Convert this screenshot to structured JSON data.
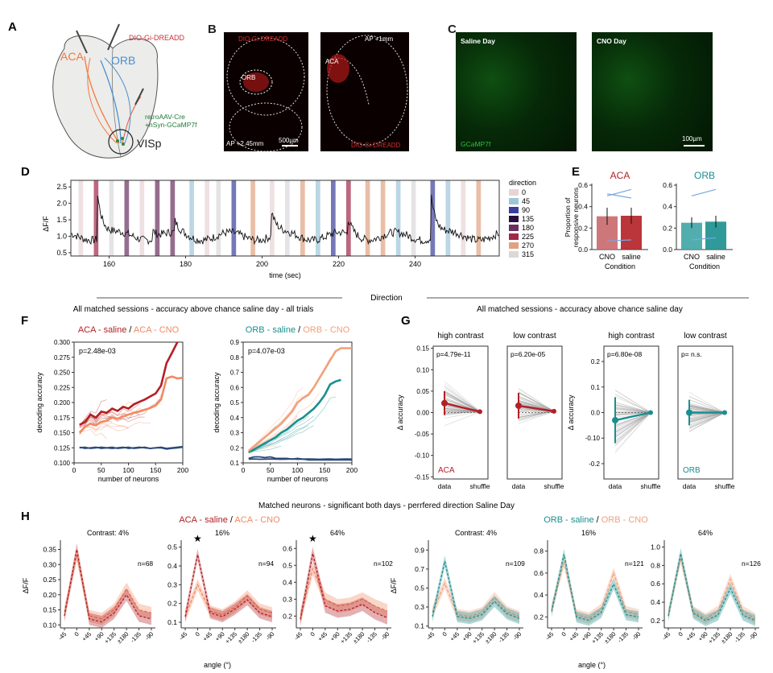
{
  "panels": {
    "A": {
      "letter": "A",
      "aca": "ACA",
      "orb": "ORB",
      "dreadd": "DIO-Gi-DREADD",
      "retro1": "retroAAV-Cre",
      "retro2": "+hSyn-GCaMP7f",
      "visp": "VISp"
    },
    "B": {
      "letter": "B",
      "dreadd_top": "DIO-Gi-DREADD",
      "orb": "ORB",
      "ap_left": "AP +2.45mm",
      "scale": "500µm",
      "ap_right": "AP +1mm",
      "aca": "ACA",
      "dreadd_bottom": "DIO-Gi-DREADD"
    },
    "C": {
      "letter": "C",
      "saline": "Saline Day",
      "cno": "CNO Day",
      "gcamp": "GCaMP7f",
      "scale": "100µm"
    },
    "D": {
      "letter": "D"
    },
    "E": {
      "letter": "E"
    },
    "F": {
      "letter": "F",
      "title": "All matched sessions - accuracy above chance saline day - all trials"
    },
    "G": {
      "letter": "G",
      "title": "All matched sessions - accuracy above chance saline day"
    },
    "H": {
      "letter": "H",
      "title": "Matched neurons - significant both days - perrfered direction Saline Day",
      "left_legend": {
        "a": "ACA - saline",
        "sep": " / ",
        "b": "ACA - CNO"
      },
      "right_legend": {
        "a": "ORB - saline",
        "sep": " / ",
        "b": "ORB - CNO"
      }
    },
    "direction_divider": "Direction"
  },
  "colors": {
    "aca_sal": "#b22025",
    "aca_cno": "#f08a62",
    "orb_sal": "#1a8f8f",
    "orb_cno": "#f2a07a",
    "nb": "#2b4a78",
    "gray": "#9a9a9a"
  },
  "chart_data": [
    {
      "id": "D",
      "type": "line",
      "title": "",
      "xlabel": "time (sec)",
      "ylabel": "ΔF/F",
      "xticks": [
        160,
        180,
        200,
        220,
        240
      ],
      "xlim": [
        150,
        262
      ],
      "yticks": [
        0.5,
        1.0,
        1.5,
        2.0,
        2.5
      ],
      "ylim": [
        0.4,
        2.7
      ],
      "legend_title": "direction",
      "directions": [
        {
          "label": "0",
          "color": "#e8d3d6"
        },
        {
          "label": "45",
          "color": "#9ec6d8"
        },
        {
          "label": "90",
          "color": "#3a3f9a"
        },
        {
          "label": "135",
          "color": "#2a0e3e"
        },
        {
          "label": "180",
          "color": "#6a2f5e"
        },
        {
          "label": "225",
          "color": "#a0264a"
        },
        {
          "label": "270",
          "color": "#e0a282"
        },
        {
          "label": "315",
          "color": "#d9d9d9"
        }
      ],
      "stim_times": [
        152,
        156,
        160,
        164,
        168,
        172,
        176,
        181,
        185,
        188,
        192,
        197,
        202,
        206,
        210,
        214,
        218,
        222,
        227,
        231,
        235,
        239,
        244,
        248,
        252,
        256
      ],
      "stim_dirs": [
        0,
        5,
        7,
        4,
        0,
        4,
        4,
        1,
        0,
        7,
        2,
        6,
        0,
        7,
        6,
        1,
        2,
        5,
        6,
        6,
        1,
        7,
        2,
        1,
        0,
        6
      ],
      "peaks": [
        {
          "t": 156.8,
          "a": 1.55
        },
        {
          "t": 177.2,
          "a": 0.35
        },
        {
          "t": 202.3,
          "a": 0.85
        },
        {
          "t": 222.4,
          "a": 0.5
        },
        {
          "t": 244.2,
          "a": 1.3
        },
        {
          "t": 171.5,
          "a": 0.25
        }
      ]
    },
    {
      "id": "E-ACA",
      "type": "bar",
      "title": "ACA",
      "xlabel": "Condition",
      "ylabel": "Proportion of\nresponsive neurons",
      "categories": [
        "CNO",
        "saline"
      ],
      "values": [
        0.31,
        0.315
      ],
      "errors": [
        0.08,
        0.075
      ],
      "ylim": [
        0,
        0.6
      ],
      "yticks": [
        0.0,
        0.2,
        0.4,
        0.6
      ],
      "pairs": [
        [
          0.5,
          0.56
        ],
        [
          0.52,
          0.48
        ],
        [
          0.08,
          0.09
        ]
      ]
    },
    {
      "id": "E-ORB",
      "type": "bar",
      "title": "ORB",
      "xlabel": "Condition",
      "ylabel": "",
      "categories": [
        "CNO",
        "saline"
      ],
      "values": [
        0.25,
        0.26
      ],
      "errors": [
        0.05,
        0.055
      ],
      "ylim": [
        0,
        0.6
      ],
      "yticks": [
        0.0,
        0.2,
        0.4,
        0.6
      ],
      "pairs": [
        [
          0.5,
          0.56
        ],
        [
          0.09,
          0.11
        ]
      ]
    },
    {
      "id": "F-ACA",
      "type": "line",
      "title": "",
      "legend": {
        "a": "ACA - saline",
        "sep": " / ",
        "b": "ACA - CNO"
      },
      "pval": "p=2.48e-03",
      "xlabel": "number of neurons",
      "ylabel": "decoding accuracy",
      "xlim": [
        0,
        200
      ],
      "ylim": [
        0.1,
        0.3
      ],
      "xticks": [
        0,
        50,
        100,
        150,
        200
      ],
      "yticks": [
        0.1,
        0.125,
        0.15,
        0.175,
        0.2,
        0.225,
        0.25,
        0.275,
        0.3
      ],
      "x": [
        10,
        20,
        30,
        40,
        50,
        60,
        70,
        80,
        90,
        100,
        110,
        120,
        130,
        140,
        150,
        160,
        170,
        180,
        190,
        200
      ],
      "series": [
        {
          "name": "ACA - saline",
          "values": [
            0.163,
            0.168,
            0.18,
            0.175,
            0.185,
            0.183,
            0.19,
            0.186,
            0.193,
            0.19,
            0.197,
            0.201,
            0.205,
            0.21,
            0.215,
            0.228,
            0.265,
            0.282,
            0.3,
            null
          ]
        },
        {
          "name": "ACA - CNO",
          "values": [
            0.15,
            0.16,
            0.165,
            0.162,
            0.168,
            0.17,
            0.175,
            0.173,
            0.177,
            0.18,
            0.183,
            0.185,
            0.188,
            0.191,
            0.195,
            0.205,
            0.24,
            0.243,
            0.24,
            0.241
          ]
        },
        {
          "name": "shuffle-saline",
          "values": [
            0.125,
            0.126,
            0.124,
            0.125,
            0.126,
            0.125,
            0.124,
            0.125,
            0.126,
            0.124,
            0.125,
            0.126,
            0.125,
            0.124,
            0.125,
            0.126,
            0.124,
            0.125,
            0.126,
            0.127
          ]
        },
        {
          "name": "shuffle-CNO",
          "values": [
            0.126,
            0.124,
            0.125,
            0.126,
            0.124,
            0.125,
            0.126,
            0.124,
            0.125,
            0.126,
            0.124,
            0.125,
            0.126,
            0.124,
            0.125,
            0.125,
            0.123,
            0.124,
            0.125,
            0.126
          ]
        }
      ]
    },
    {
      "id": "F-ORB",
      "type": "line",
      "title": "",
      "legend": {
        "a": "ORB - saline",
        "sep": " / ",
        "b": "ORB - CNO"
      },
      "pval": "p=4.07e-03",
      "xlabel": "number of neurons",
      "ylabel": "decoding accuracy",
      "xlim": [
        0,
        200
      ],
      "ylim": [
        0.1,
        0.9
      ],
      "xticks": [
        0,
        50,
        100,
        150,
        200
      ],
      "yticks": [
        0.1,
        0.2,
        0.3,
        0.4,
        0.5,
        0.6,
        0.7,
        0.8,
        0.9
      ],
      "x": [
        10,
        20,
        30,
        40,
        50,
        60,
        70,
        80,
        90,
        100,
        110,
        120,
        130,
        140,
        150,
        160,
        170,
        180,
        190,
        200
      ],
      "series": [
        {
          "name": "ORB - saline",
          "values": [
            0.17,
            0.19,
            0.21,
            0.23,
            0.25,
            0.27,
            0.3,
            0.32,
            0.35,
            0.38,
            0.4,
            0.43,
            0.46,
            0.5,
            0.55,
            0.62,
            0.64,
            0.65,
            null,
            null
          ]
        },
        {
          "name": "ORB - CNO",
          "values": [
            0.18,
            0.21,
            0.24,
            0.27,
            0.3,
            0.33,
            0.36,
            0.4,
            0.44,
            0.5,
            0.53,
            0.55,
            0.6,
            0.66,
            0.72,
            0.78,
            0.84,
            0.86,
            0.86,
            0.86
          ]
        },
        {
          "name": "shuffle-saline",
          "values": [
            0.125,
            0.126,
            0.124,
            0.125,
            0.126,
            0.125,
            0.124,
            0.125,
            0.126,
            0.124,
            0.125,
            0.126,
            0.125,
            0.124,
            0.125,
            0.126,
            0.124,
            0.125,
            0.126,
            0.125
          ]
        },
        {
          "name": "shuffle-CNO",
          "values": [
            0.13,
            0.14,
            0.14,
            0.135,
            0.14,
            0.13,
            0.13,
            0.13,
            0.125,
            0.13,
            0.125,
            0.12,
            0.12,
            0.12,
            0.12,
            0.12,
            0.12,
            0.12,
            0.12,
            0.12
          ]
        }
      ]
    },
    {
      "id": "G",
      "type": "scatter",
      "ylabel": "Δ accuracy",
      "xlabel_data": "data",
      "xlabel_shuffle": "shuffle",
      "subplots": [
        {
          "title": "high contrast",
          "pval": "p=4.79e-11",
          "region": "ACA",
          "ylim": [
            -0.155,
            0.155
          ],
          "yticks": [
            -0.15,
            -0.1,
            -0.05,
            0.0,
            0.05,
            0.1,
            0.15
          ],
          "mean": 0.022,
          "err": 0.028,
          "smean": 0.002,
          "serr": 0.004,
          "spread": 0.06
        },
        {
          "title": "low contrast",
          "pval": "p=6.20e-05",
          "region": "",
          "ylim": [
            -0.155,
            0.155
          ],
          "yticks": [],
          "mean": 0.016,
          "err": 0.03,
          "smean": 0.003,
          "serr": 0.003,
          "spread": 0.05
        },
        {
          "title": "high contrast",
          "pval": "p=6.80e-08",
          "region": "",
          "ylim": [
            -0.26,
            0.26
          ],
          "yticks": [
            -0.2,
            -0.1,
            0.0,
            0.1,
            0.2
          ],
          "mean": -0.03,
          "err": 0.09,
          "smean": 0.0,
          "serr": 0.006,
          "spread": 0.15
        },
        {
          "title": "low contrast",
          "pval": "p= n.s.",
          "region": "ORB",
          "ylim": [
            -0.26,
            0.26
          ],
          "yticks": [],
          "mean": 0.0,
          "err": 0.05,
          "smean": 0.0,
          "serr": 0.006,
          "spread": 0.09
        }
      ]
    },
    {
      "id": "H",
      "type": "line",
      "xlabel": "angle (°)",
      "ylabel": "ΔF/F",
      "categories": [
        "-45",
        "0",
        "+45",
        "+90",
        "+135",
        "±180",
        "-135",
        "-90"
      ],
      "subplots": [
        {
          "title": "Contrast: 4%",
          "n": "n=68",
          "star": "",
          "ylim": [
            0.09,
            0.37
          ],
          "yticks": [
            0.1,
            0.15,
            0.2,
            0.25,
            0.3,
            0.35
          ],
          "sal": [
            0.13,
            0.35,
            0.12,
            0.11,
            0.14,
            0.2,
            0.13,
            0.12
          ],
          "cno": [
            0.14,
            0.33,
            0.13,
            0.12,
            0.15,
            0.22,
            0.15,
            0.14
          ],
          "band": 0.02,
          "pal": "aca"
        },
        {
          "title": "16%",
          "n": "n=94",
          "star": "★",
          "ylim": [
            0.07,
            0.52
          ],
          "yticks": [
            0.1,
            0.2,
            0.3,
            0.4,
            0.5
          ],
          "sal": [
            0.13,
            0.46,
            0.15,
            0.13,
            0.17,
            0.22,
            0.15,
            0.13
          ],
          "cno": [
            0.13,
            0.3,
            0.16,
            0.14,
            0.18,
            0.24,
            0.17,
            0.15
          ],
          "band": 0.03,
          "pal": "aca"
        },
        {
          "title": "64%",
          "n": "n=102",
          "star": "★",
          "ylim": [
            0.13,
            0.63
          ],
          "yticks": [
            0.2,
            0.3,
            0.4,
            0.5,
            0.6
          ],
          "sal": [
            0.18,
            0.57,
            0.26,
            0.23,
            0.24,
            0.27,
            0.22,
            0.19
          ],
          "cno": [
            0.19,
            0.48,
            0.3,
            0.26,
            0.27,
            0.3,
            0.26,
            0.23
          ],
          "band": 0.04,
          "pal": "aca"
        },
        {
          "title": "Contrast: 4%",
          "n": "n=109",
          "star": "",
          "ylim": [
            0.08,
            0.97
          ],
          "yticks": [
            0.1,
            0.3,
            0.5,
            0.7,
            0.9
          ],
          "sal": [
            0.2,
            0.78,
            0.2,
            0.18,
            0.22,
            0.36,
            0.23,
            0.18
          ],
          "cno": [
            0.24,
            0.55,
            0.22,
            0.2,
            0.24,
            0.4,
            0.25,
            0.2
          ],
          "band": 0.06,
          "pal": "orb"
        },
        {
          "title": "16%",
          "n": "n=121",
          "star": "",
          "ylim": [
            0.1,
            0.87
          ],
          "yticks": [
            0.2,
            0.4,
            0.6,
            0.8
          ],
          "sal": [
            0.25,
            0.77,
            0.2,
            0.17,
            0.24,
            0.5,
            0.22,
            0.2
          ],
          "cno": [
            0.27,
            0.7,
            0.22,
            0.19,
            0.27,
            0.6,
            0.25,
            0.22
          ],
          "band": 0.05,
          "pal": "orb"
        },
        {
          "title": "64%",
          "n": "n=126",
          "star": "",
          "ylim": [
            0.12,
            1.04
          ],
          "yticks": [
            0.2,
            0.4,
            0.6,
            0.8,
            1.0
          ],
          "sal": [
            0.25,
            0.93,
            0.28,
            0.2,
            0.26,
            0.55,
            0.26,
            0.2
          ],
          "cno": [
            0.27,
            0.88,
            0.3,
            0.22,
            0.3,
            0.65,
            0.3,
            0.22
          ],
          "band": 0.06,
          "pal": "orb"
        }
      ]
    }
  ]
}
